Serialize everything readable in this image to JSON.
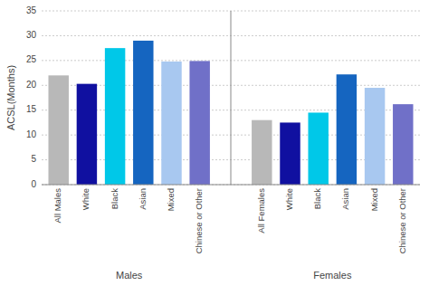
{
  "chart_data": {
    "type": "bar",
    "ylabel": "ACSL(Months)",
    "ylim": [
      0,
      35
    ],
    "yticks": [
      0,
      5,
      10,
      15,
      20,
      25,
      30,
      35
    ],
    "grid": true,
    "series": [
      {
        "name": "Males",
        "categories": [
          "All Males",
          "White",
          "Black",
          "Asian",
          "Mixed",
          "Chinese or Other"
        ],
        "values": [
          22.0,
          20.3,
          27.5,
          29.0,
          24.8,
          24.9
        ],
        "colors": [
          "#b8b8b8",
          "#1010a0",
          "#00c8e8",
          "#1565c0",
          "#a8c8f0",
          "#7070c8"
        ]
      },
      {
        "name": "Females",
        "categories": [
          "All Females",
          "White",
          "Black",
          "Asian",
          "Mixed",
          "Chinese or Other"
        ],
        "values": [
          13.0,
          12.5,
          14.5,
          22.2,
          19.5,
          16.2
        ],
        "colors": [
          "#b8b8b8",
          "#1010a0",
          "#00c8e8",
          "#1565c0",
          "#a8c8f0",
          "#7070c8"
        ]
      }
    ]
  }
}
